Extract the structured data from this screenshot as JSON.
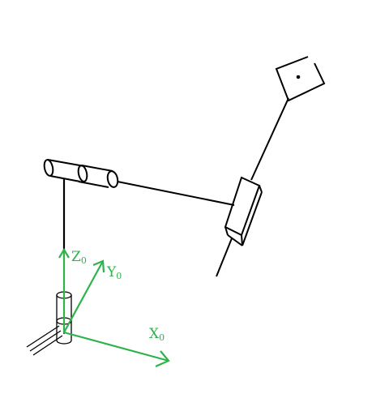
{
  "diagram": {
    "colors": {
      "ink": "#000000",
      "axis": "#2db34a",
      "background": "#ffffff"
    },
    "axes": {
      "z": {
        "letter": "Z",
        "subscript": "0"
      },
      "y": {
        "letter": "Y",
        "subscript": "0"
      },
      "x": {
        "letter": "X",
        "subscript": "0"
      }
    },
    "parts": [
      "base-cylinder-joint",
      "vertical-link",
      "shoulder-cylinder-joint",
      "horizontal-link",
      "prismatic-joint-box",
      "end-effector-square"
    ]
  }
}
